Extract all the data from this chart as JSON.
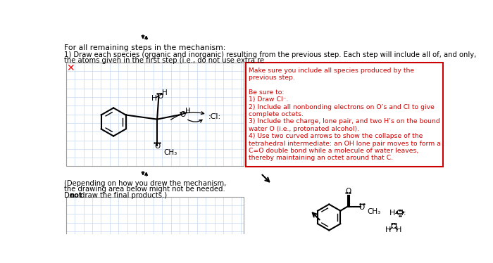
{
  "text_line1": "For all remaining steps in the mechanism:",
  "text_line2": "1) Draw each species (organic and inorganic) resulting from the previous step. Each step will include all of, and only,",
  "text_line3": "the atoms given in the first step (i.e., do not use extra re",
  "red_text": [
    "Make sure you include all species produced by the",
    "previous step.",
    "",
    "Be sure to:",
    "1) Draw Cl⁻.",
    "2) Include all nonbonding electrons on O’s and Cl to give",
    "complete octets.",
    "3) Include the charge, lone pair, and two H’s on the bound",
    "water O (i.e., protonated alcohol).",
    "4) Use two curved arrows to show the collapse of the",
    "tetrahedral intermediate: an OH lone pair moves to form a",
    "C=O double bond while a molecule of water leaves,",
    "thereby maintaining an octet around that C."
  ],
  "bottom_left_text_1": "(Depending on how you drew the mechanism,",
  "bottom_left_text_2": "the drawing area below might not be needed.",
  "bottom_left_text_3a": "Do ",
  "bottom_left_text_3b": "not",
  "bottom_left_text_3c": " draw the final products.)",
  "bg_color": "#ffffff",
  "grid_color": "#c5d8f0",
  "red_color": "#cc0000",
  "black_color": "#000000"
}
